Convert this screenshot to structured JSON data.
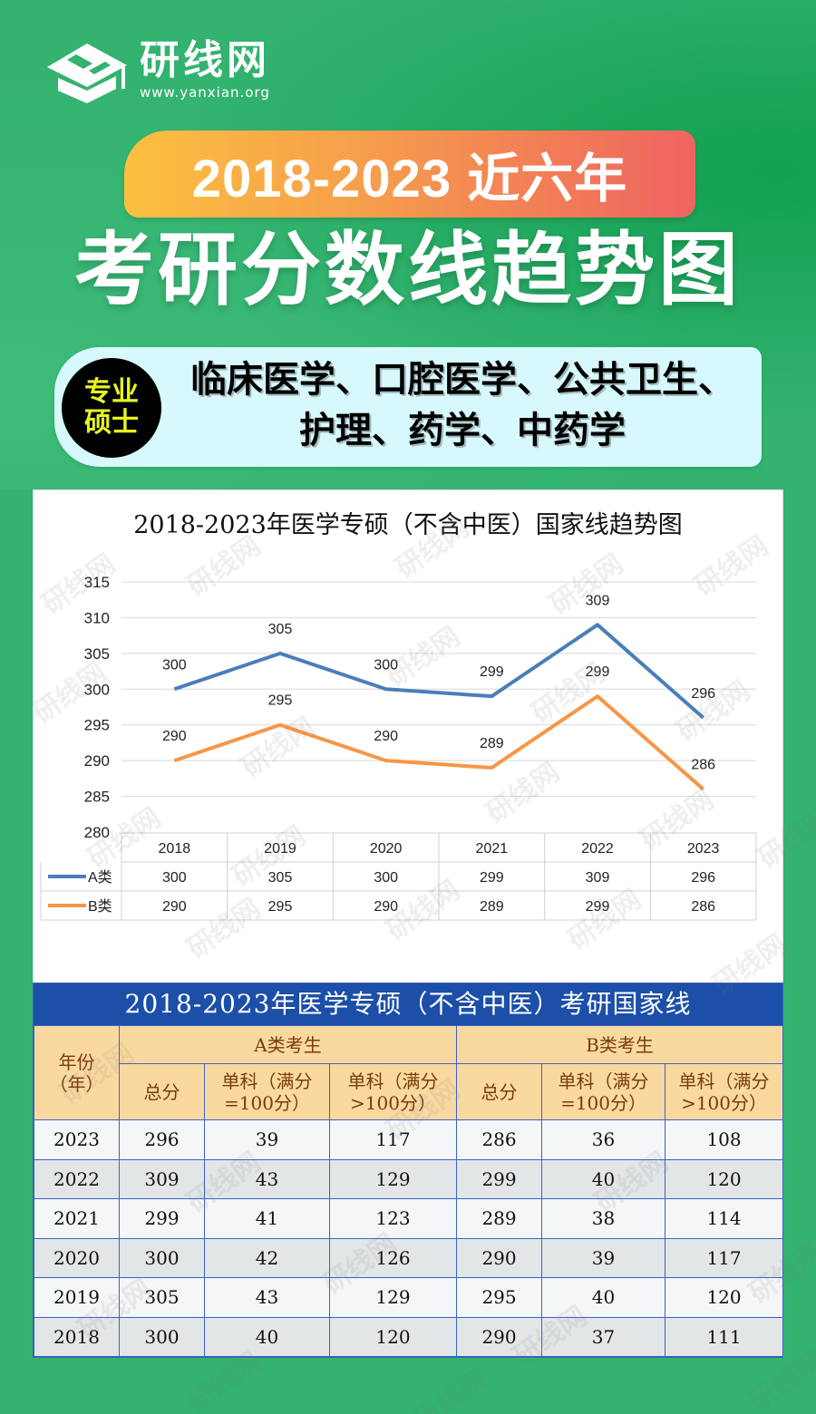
{
  "brand": {
    "name": "研线网",
    "url": "www.yanxian.org",
    "logo_icon": "graduation-cap-icon"
  },
  "header": {
    "year_range": "2018-2023 近六年",
    "title": "考研分数线趋势图"
  },
  "subject_box": {
    "badge_line1": "专业",
    "badge_line2": "硕士",
    "subjects_line1": "临床医学、口腔医学、公共卫生、",
    "subjects_line2": "护理、药学、中药学"
  },
  "colors": {
    "background": "#33b270",
    "series_a": "#4a7ebb",
    "series_b": "#f79646",
    "table_header_bg": "#1c4fa8",
    "table_subheader_bg": "#f9d9a0"
  },
  "chart_data": {
    "type": "line",
    "title": "2018-2023年医学专硕（不含中医）国家线趋势图",
    "categories": [
      "2018",
      "2019",
      "2020",
      "2021",
      "2022",
      "2023"
    ],
    "series": [
      {
        "name": "A类",
        "values": [
          300,
          305,
          300,
          299,
          309,
          296
        ],
        "color": "#4a7ebb"
      },
      {
        "name": "B类",
        "values": [
          290,
          295,
          290,
          289,
          299,
          286
        ],
        "color": "#f79646"
      }
    ],
    "yticks": [
      280,
      285,
      290,
      295,
      300,
      305,
      310,
      315
    ],
    "ylim": [
      280,
      315
    ],
    "xlabel": "",
    "ylabel": "",
    "grid": true,
    "legend_position": "data-table"
  },
  "table": {
    "title": "2018-2023年医学专硕（不含中医）考研国家线",
    "year_header": "年份（年）",
    "group_a": "A类考生",
    "group_b": "B类考生",
    "sub_headers": [
      "总分",
      "单科（满分=100分）",
      "单科（满分>100分）",
      "总分",
      "单科（满分=100分）",
      "单科（满分>100分）"
    ],
    "rows": [
      {
        "year": "2023",
        "a_total": "296",
        "a_100": "39",
        "a_gt100": "117",
        "b_total": "286",
        "b_100": "36",
        "b_gt100": "108"
      },
      {
        "year": "2022",
        "a_total": "309",
        "a_100": "43",
        "a_gt100": "129",
        "b_total": "299",
        "b_100": "40",
        "b_gt100": "120"
      },
      {
        "year": "2021",
        "a_total": "299",
        "a_100": "41",
        "a_gt100": "123",
        "b_total": "289",
        "b_100": "38",
        "b_gt100": "114"
      },
      {
        "year": "2020",
        "a_total": "300",
        "a_100": "42",
        "a_gt100": "126",
        "b_total": "290",
        "b_100": "39",
        "b_gt100": "117"
      },
      {
        "year": "2019",
        "a_total": "305",
        "a_100": "43",
        "a_gt100": "129",
        "b_total": "295",
        "b_100": "40",
        "b_gt100": "120"
      },
      {
        "year": "2018",
        "a_total": "300",
        "a_100": "40",
        "a_gt100": "120",
        "b_total": "290",
        "b_100": "37",
        "b_gt100": "111"
      }
    ]
  }
}
